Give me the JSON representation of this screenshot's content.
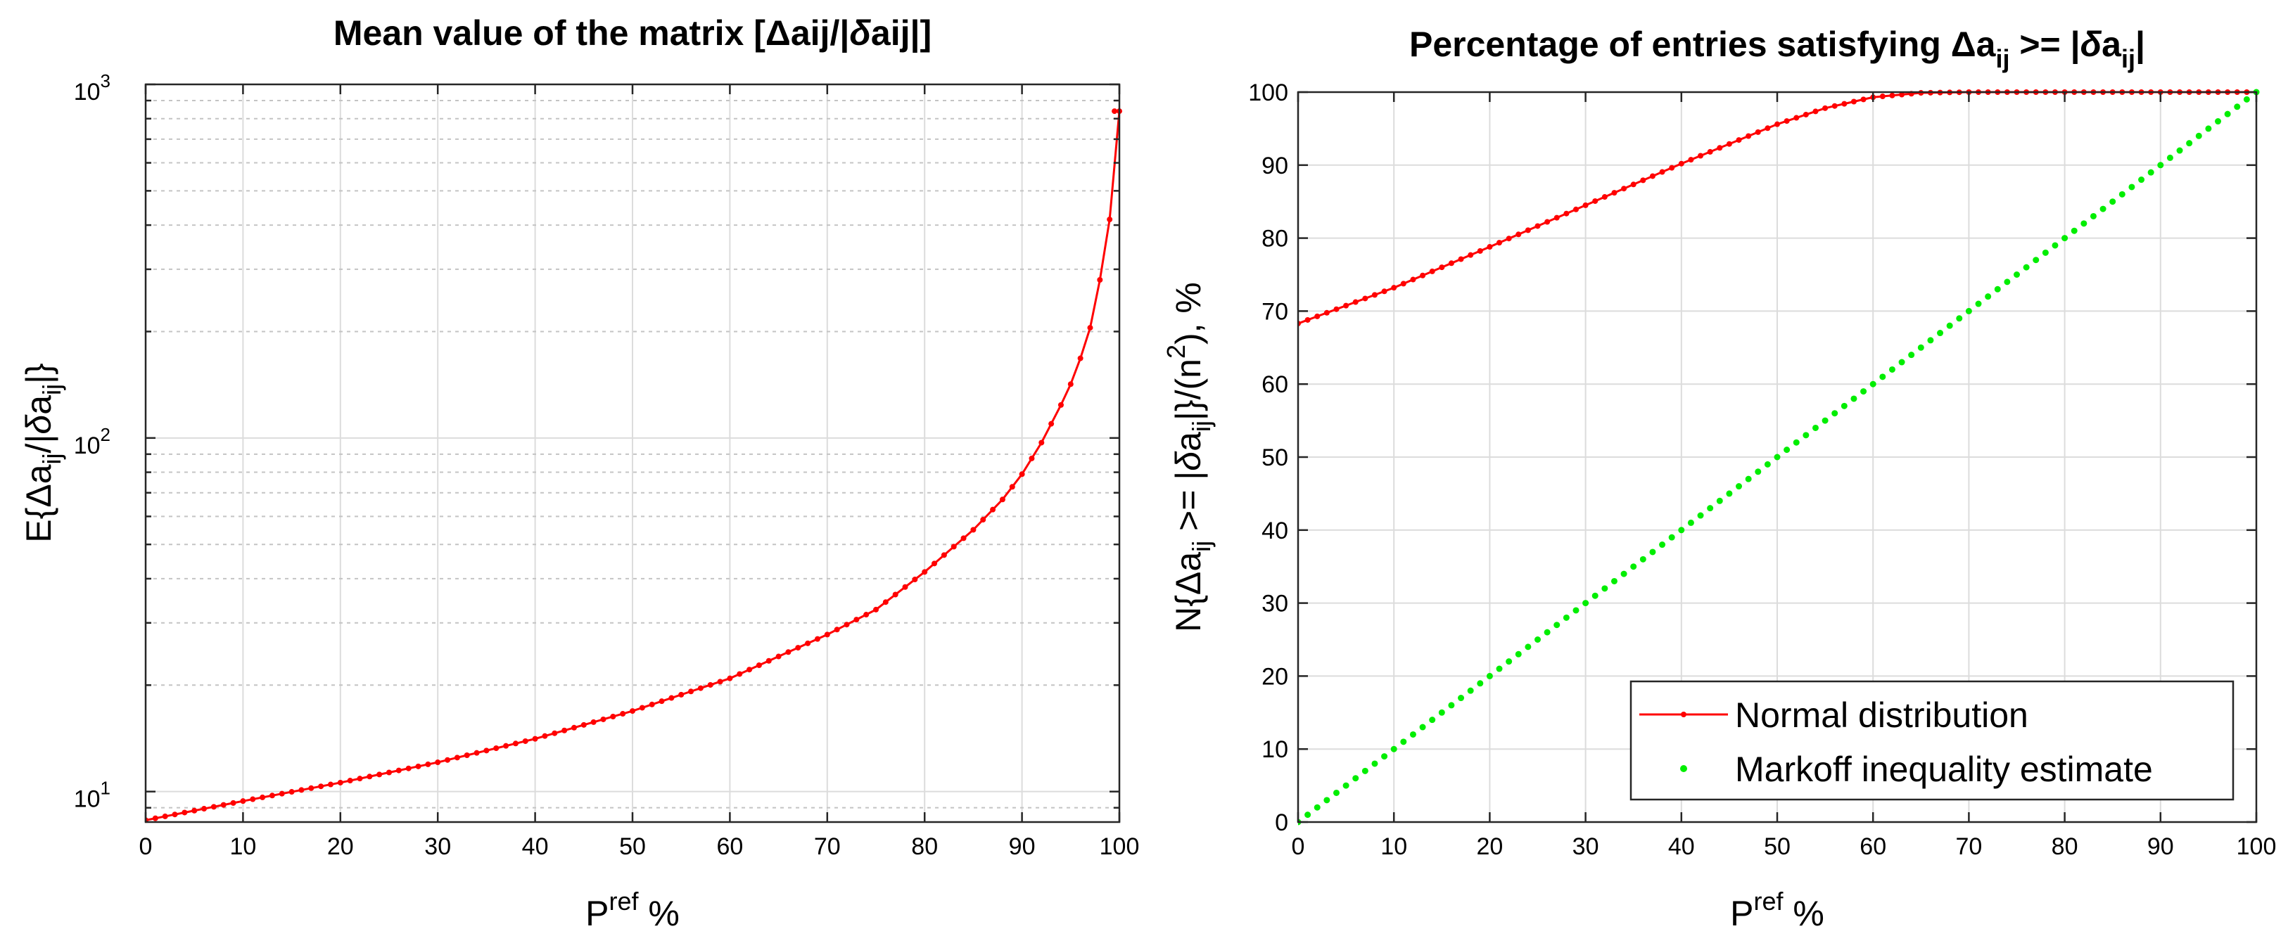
{
  "chart_data": [
    {
      "type": "line",
      "title_parts": [
        "Mean value of the matrix [Δa",
        "ij",
        "/|",
        "δ",
        "a",
        "ij",
        "|]"
      ],
      "xlabel_parts": [
        "P",
        "ref",
        " %"
      ],
      "ylabel_parts": [
        "E{Δa",
        "ij",
        "/|",
        "δ",
        "a",
        "ij",
        "|}"
      ],
      "xlim": [
        0,
        100
      ],
      "ylim": [
        8.2,
        1000
      ],
      "yscale": "log",
      "xticks": [
        0,
        10,
        20,
        30,
        40,
        50,
        60,
        70,
        80,
        90,
        100
      ],
      "xtick_labels": [
        "0",
        "10",
        "20",
        "30",
        "40",
        "50",
        "60",
        "70",
        "80",
        "90",
        "100"
      ],
      "ytick_labels": [
        {
          "value": 10,
          "base": "10",
          "exp": "1"
        },
        {
          "value": 100,
          "base": "10",
          "exp": "2"
        },
        {
          "value": 1000,
          "base": "10",
          "exp": "3"
        }
      ],
      "grid": true,
      "minor_grid": true,
      "series": [
        {
          "color": "#ff0000",
          "marker": "dot",
          "step": 1,
          "points": [
            [
              0,
              8.3
            ],
            [
              10,
              9.4
            ],
            [
              20,
              10.6
            ],
            [
              30,
              12.1
            ],
            [
              40,
              14.1
            ],
            [
              50,
              16.9
            ],
            [
              60,
              20.9
            ],
            [
              70,
              27.8
            ],
            [
              75,
              32.7
            ],
            [
              80,
              41.8
            ],
            [
              85,
              55.0
            ],
            [
              88,
              67.0
            ],
            [
              90,
              79.0
            ],
            [
              92,
              97.0
            ],
            [
              94,
              124.0
            ],
            [
              95,
              142.0
            ],
            [
              96,
              168.0
            ],
            [
              97,
              205.0
            ],
            [
              98,
              280.0
            ],
            [
              99,
              415.0
            ],
            [
              100,
              840.0
            ]
          ],
          "tail": [
            [
              99.5,
              840.0
            ],
            [
              100,
              840.0
            ]
          ]
        }
      ]
    },
    {
      "type": "line",
      "title_parts": [
        "Percentage of entries satisfying Δa",
        "ij",
        " >= |",
        "δ",
        "a",
        "ij",
        "|"
      ],
      "xlabel_parts": [
        "P",
        "ref",
        " %"
      ],
      "ylabel_parts": [
        "N{Δa",
        "ij",
        " >= |",
        "δ",
        "a",
        "ij",
        "|}/(n",
        "2",
        "), %"
      ],
      "xlim": [
        0,
        100
      ],
      "ylim": [
        0,
        100
      ],
      "yscale": "linear",
      "xticks": [
        0,
        10,
        20,
        30,
        40,
        50,
        60,
        70,
        80,
        90,
        100
      ],
      "xtick_labels": [
        "0",
        "10",
        "20",
        "30",
        "40",
        "50",
        "60",
        "70",
        "80",
        "90",
        "100"
      ],
      "yticks": [
        0,
        10,
        20,
        30,
        40,
        50,
        60,
        70,
        80,
        90,
        100
      ],
      "ytick_labels": [
        "0",
        "10",
        "20",
        "30",
        "40",
        "50",
        "60",
        "70",
        "80",
        "90",
        "100"
      ],
      "grid": true,
      "series": [
        {
          "name": "Normal distribution",
          "color": "#ff0000",
          "style": "line-dot",
          "step": 1,
          "points": [
            [
              0,
              68.3
            ],
            [
              10,
              73.2
            ],
            [
              20,
              78.8
            ],
            [
              30,
              84.5
            ],
            [
              40,
              90.2
            ],
            [
              50,
              95.6
            ],
            [
              55,
              97.8
            ],
            [
              60,
              99.3
            ],
            [
              65,
              99.9
            ],
            [
              70,
              100
            ],
            [
              100,
              100
            ]
          ]
        },
        {
          "name": "Markoff inequality estimate",
          "color": "#00ee00",
          "style": "dots",
          "step": 1,
          "points": [
            [
              0,
              0
            ],
            [
              100,
              100
            ]
          ]
        }
      ],
      "legend": "bottom-right"
    }
  ]
}
